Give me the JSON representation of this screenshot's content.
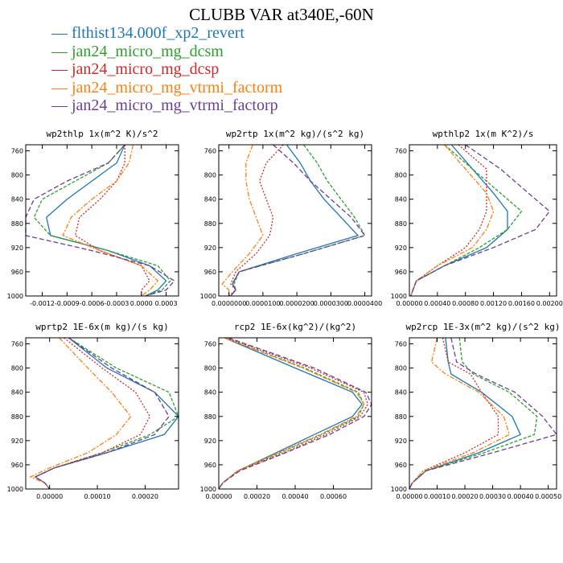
{
  "title": "CLUBB VAR at340E,-60N",
  "legend": [
    {
      "label": "flthist134.000f_xp2_revert",
      "color": "#1f77b4"
    },
    {
      "label": "jan24_micro_mg_dcsm",
      "color": "#2ca02c"
    },
    {
      "label": "jan24_micro_mg_dcsp",
      "color": "#d62728"
    },
    {
      "label": "jan24_micro_mg_vtrmi_factorm",
      "color": "#ff7f0e"
    },
    {
      "label": "jan24_micro_mg_vtrmi_factorp",
      "color": "#6a3d9a"
    }
  ],
  "chart_data": [
    {
      "type": "line",
      "title": "wp2thlp  1x(m^2 K)/s^2",
      "xlim": [
        -0.0014,
        0.00045
      ],
      "ylim": [
        1000,
        750
      ],
      "xticks": [
        -0.0012,
        -0.0009,
        -0.0006,
        -0.0003,
        0.0,
        0.0003
      ],
      "xtick_labels": [
        "-0.0012",
        "-0.0009",
        "-0.0006",
        "-0.0003",
        "0.0000",
        "0.0003"
      ],
      "yticks": [
        760,
        800,
        840,
        880,
        920,
        960,
        1000
      ],
      "y": [
        750,
        780,
        810,
        840,
        870,
        900,
        925,
        950,
        975,
        990,
        1000
      ],
      "series": [
        {
          "values": [
            -0.0002,
            -0.0003,
            -0.0006,
            -0.0009,
            -0.00115,
            -0.0011,
            -0.0004,
            0.0001,
            0.0003,
            0.0002,
            5e-05
          ]
        },
        {
          "values": [
            -0.0002,
            -0.0004,
            -0.0008,
            -0.0012,
            -0.0013,
            -0.0011,
            -0.0004,
            0.0002,
            0.00035,
            0.00025,
            5e-05
          ]
        },
        {
          "values": [
            -0.0002,
            -0.0002,
            -0.0003,
            -0.0005,
            -0.00075,
            -0.0008,
            -0.0005,
            0.0,
            0.0001,
            0.0,
            0.0
          ]
        },
        {
          "values": [
            -0.0001,
            -0.00015,
            -0.0003,
            -0.0006,
            -0.00085,
            -0.00095,
            -0.0005,
            0.0,
            0.0002,
            0.0001,
            0.0
          ]
        },
        {
          "values": [
            -0.0002,
            -0.0004,
            -0.0009,
            -0.0013,
            -0.0014,
            -0.0014,
            -0.0006,
            0.0001,
            0.0004,
            0.0003,
            5e-05
          ]
        }
      ]
    },
    {
      "type": "line",
      "title": "wp2rtp  1x(m^2 kg)/(s^2 kg)",
      "xlim": [
        -3e-06,
        4.2e-05
      ],
      "ylim": [
        1000,
        750
      ],
      "xticks": [
        0.0,
        1e-05,
        2e-05,
        3e-05,
        4e-05
      ],
      "xtick_labels": [
        "0.0000000",
        "0.0000100",
        "0.0000200",
        "0.0000300",
        "0.0000400"
      ],
      "yticks": [
        760,
        800,
        840,
        880,
        920,
        960,
        1000
      ],
      "y": [
        750,
        780,
        810,
        840,
        870,
        900,
        930,
        960,
        980,
        990,
        1000
      ],
      "series": [
        {
          "values": [
            1.7e-05,
            2.1e-05,
            2.4e-05,
            2.8e-05,
            3.3e-05,
            3.8e-05,
            2e-05,
            3e-06,
            1e-06,
            2e-06,
            5e-07
          ]
        },
        {
          "values": [
            2.2e-05,
            2.6e-05,
            2.9e-05,
            3.3e-05,
            3.7e-05,
            4e-05,
            2.2e-05,
            3e-06,
            1.5e-06,
            2e-06,
            5e-07
          ]
        },
        {
          "values": [
            1.6e-05,
            1.1e-05,
            9e-06,
            1.1e-05,
            1.3e-05,
            1.2e-05,
            8e-06,
            2e-06,
            5e-07,
            2e-06,
            0.0
          ]
        },
        {
          "values": [
            7e-06,
            5e-06,
            5e-06,
            6e-06,
            8e-06,
            1e-05,
            6e-06,
            1e-06,
            -2e-06,
            0.0,
            0.0
          ]
        },
        {
          "values": [
            1.3e-05,
            1.9e-05,
            2.4e-05,
            3e-05,
            3.6e-05,
            4e-05,
            2.2e-05,
            3e-06,
            1e-06,
            2e-06,
            5e-07
          ]
        }
      ]
    },
    {
      "type": "line",
      "title": "wpthlp2  1x(m K^2)/s",
      "xlim": [
        0.0,
        0.0021
      ],
      "ylim": [
        1000,
        750
      ],
      "xticks": [
        0.0,
        0.0004,
        0.0008,
        0.0012,
        0.0016,
        0.002
      ],
      "xtick_labels": [
        "0.00000",
        "0.00040",
        "0.00080",
        "0.00120",
        "0.00160",
        "0.00200"
      ],
      "yticks": [
        760,
        800,
        840,
        880,
        920,
        960,
        1000
      ],
      "y": [
        750,
        790,
        830,
        860,
        890,
        920,
        950,
        975,
        990,
        1000
      ],
      "series": [
        {
          "values": [
            0.0006,
            0.0009,
            0.0012,
            0.0014,
            0.0014,
            0.0011,
            0.0005,
            0.0001,
            5e-05,
            2e-05
          ]
        },
        {
          "values": [
            0.0005,
            0.0009,
            0.0013,
            0.0016,
            0.0014,
            0.001,
            0.0005,
            0.0001,
            5e-05,
            2e-05
          ]
        },
        {
          "values": [
            0.0007,
            0.0011,
            0.0011,
            0.0011,
            0.001,
            0.0008,
            0.0004,
            0.0001,
            5e-05,
            2e-05
          ]
        },
        {
          "values": [
            0.0005,
            0.0008,
            0.0011,
            0.0012,
            0.0011,
            0.0009,
            0.0004,
            0.0001,
            5e-05,
            2e-05
          ]
        },
        {
          "values": [
            0.0008,
            0.0013,
            0.0017,
            0.002,
            0.0018,
            0.0012,
            0.0005,
            0.0001,
            5e-05,
            2e-05
          ]
        }
      ]
    },
    {
      "type": "line",
      "title": "wprtp2  1E-6x(m kg)/(s kg)",
      "xlim": [
        -5e-05,
        0.00027
      ],
      "ylim": [
        1000,
        750
      ],
      "xticks": [
        0.0,
        0.0001,
        0.0002
      ],
      "xtick_labels": [
        "0.00000",
        "0.00010",
        "0.00020"
      ],
      "yticks": [
        760,
        800,
        840,
        880,
        920,
        960,
        1000
      ],
      "y": [
        750,
        800,
        840,
        880,
        910,
        940,
        965,
        980,
        990,
        1000
      ],
      "series": [
        {
          "values": [
            4e-05,
            0.00012,
            0.00022,
            0.00027,
            0.00024,
            0.00012,
            1e-05,
            -3e-05,
            -1e-05,
            0.0
          ]
        },
        {
          "values": [
            4e-05,
            0.00014,
            0.00025,
            0.00027,
            0.00021,
            0.00011,
            1e-05,
            -3e-05,
            -1e-05,
            0.0
          ]
        },
        {
          "values": [
            3e-05,
            0.00011,
            0.00018,
            0.00021,
            0.00019,
            0.00011,
            1e-05,
            -3e-05,
            -1e-05,
            0.0
          ]
        },
        {
          "values": [
            2e-05,
            8e-05,
            0.00013,
            0.00017,
            0.00014,
            8e-05,
            0.0,
            -4e-05,
            -1e-05,
            0.0
          ]
        },
        {
          "values": [
            4e-05,
            0.00013,
            0.00022,
            0.00025,
            0.00022,
            0.00012,
            1e-05,
            -3e-05,
            -1e-05,
            0.0
          ]
        }
      ]
    },
    {
      "type": "line",
      "title": "rcp2  1E-6x(kg^2)/(kg^2)",
      "xlim": [
        0.0,
        0.0008
      ],
      "ylim": [
        1000,
        750
      ],
      "xticks": [
        0.0,
        0.0002,
        0.0004,
        0.0006
      ],
      "xtick_labels": [
        "0.00000",
        "0.00020",
        "0.00040",
        "0.00060"
      ],
      "yticks": [
        760,
        800,
        840,
        880,
        920,
        960,
        1000
      ],
      "y": [
        750,
        800,
        840,
        860,
        880,
        910,
        940,
        970,
        990,
        1000
      ],
      "series": [
        {
          "values": [
            3e-05,
            0.0004,
            0.0007,
            0.00075,
            0.0007,
            0.0005,
            0.0003,
            0.0001,
            2e-05,
            0.0
          ]
        },
        {
          "values": [
            3e-05,
            0.00045,
            0.00073,
            0.00076,
            0.00073,
            0.00054,
            0.00032,
            0.0001,
            2e-05,
            0.0
          ]
        },
        {
          "values": [
            4e-05,
            0.00048,
            0.00076,
            0.00078,
            0.00074,
            0.00056,
            0.00034,
            0.0001,
            2e-05,
            0.0
          ]
        },
        {
          "values": [
            3e-05,
            0.00044,
            0.00072,
            0.00076,
            0.00072,
            0.00053,
            0.00031,
            0.0001,
            2e-05,
            0.0
          ]
        },
        {
          "values": [
            5e-05,
            0.0005,
            0.00077,
            0.0008,
            0.00076,
            0.00058,
            0.00035,
            0.00011,
            2e-05,
            0.0
          ]
        }
      ]
    },
    {
      "type": "line",
      "title": "wp2rcp  1E-3x(m^2 kg)/(s^2 kg)",
      "xlim": [
        0.0,
        0.00053
      ],
      "ylim": [
        1000,
        750
      ],
      "xticks": [
        0.0,
        0.0001,
        0.0002,
        0.0003,
        0.0004,
        0.0005
      ],
      "xtick_labels": [
        "0.00000",
        "0.00010",
        "0.00020",
        "0.00030",
        "0.00040",
        "0.00050"
      ],
      "yticks": [
        760,
        800,
        840,
        880,
        920,
        960,
        1000
      ],
      "y": [
        750,
        790,
        810,
        840,
        880,
        910,
        940,
        970,
        990,
        1000
      ],
      "series": [
        {
          "values": [
            0.00013,
            0.00014,
            0.00015,
            0.00026,
            0.00037,
            0.0004,
            0.00025,
            6e-05,
            1e-05,
            0.0
          ]
        },
        {
          "values": [
            0.00018,
            0.00019,
            0.00023,
            0.00036,
            0.00046,
            0.00045,
            0.00027,
            6e-05,
            1e-05,
            0.0
          ]
        },
        {
          "values": [
            0.00012,
            0.00014,
            0.00022,
            0.00026,
            0.00032,
            0.00032,
            0.0002,
            5e-05,
            1e-05,
            0.0
          ]
        },
        {
          "values": [
            0.0001,
            8e-05,
            0.00013,
            0.00025,
            0.00034,
            0.00036,
            0.00023,
            5e-05,
            1e-05,
            0.0
          ]
        },
        {
          "values": [
            0.00015,
            0.00017,
            0.00024,
            0.00038,
            0.00048,
            0.00053,
            0.0003,
            6e-05,
            1e-05,
            0.0
          ]
        }
      ]
    }
  ]
}
